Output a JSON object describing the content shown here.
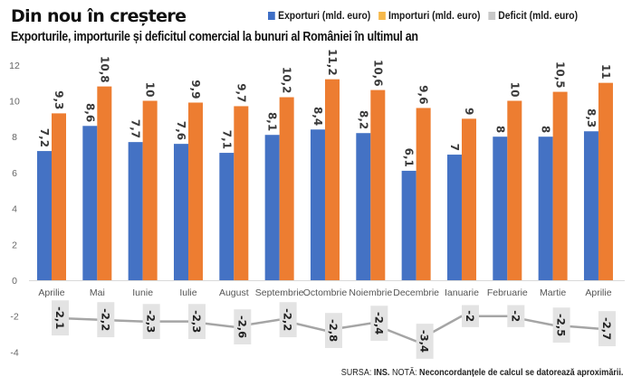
{
  "header": {
    "title": "Din nou în creștere",
    "subtitle": "Exporturile, importurile și deficitul comercial la bunuri al României în ultimul an"
  },
  "legend": [
    {
      "label": "Exporturi (mld. euro)",
      "color": "#3f6fc6"
    },
    {
      "label": "Importuri (mld. euro)",
      "color": "#f6b84a"
    },
    {
      "label": "Deficit (mld. euro)",
      "color": "#c8c8c8"
    }
  ],
  "footer": {
    "source_prefix": "SURSA: ",
    "source": "INS.",
    "note_prefix": " NOTĂ: ",
    "note": "Neconcordanțele de calcul se datorează aproximării."
  },
  "chart_data": {
    "type": "bar",
    "title": "Din nou în creștere",
    "subtitle": "Exporturile, importurile și deficitul comercial la bunuri al României în ultimul an",
    "xlabel": "",
    "ylabel": "",
    "ylim": [
      -4,
      12
    ],
    "yticks": [
      -4,
      -2,
      0,
      2,
      4,
      6,
      8,
      10,
      12
    ],
    "grid": false,
    "legend_position": "top-right",
    "categories": [
      "Aprilie",
      "Mai",
      "Iunie",
      "Iulie",
      "August",
      "Septembrie",
      "Octombrie",
      "Noiembrie",
      "Decembrie",
      "Ianuarie",
      "Februarie",
      "Martie",
      "Aprilie"
    ],
    "series": [
      {
        "name": "Exporturi (mld. euro)",
        "type": "bar",
        "color": "#4472c4",
        "values": [
          7.2,
          8.6,
          7.7,
          7.6,
          7.1,
          8.1,
          8.4,
          8.2,
          6.1,
          7,
          8,
          8,
          8.3
        ],
        "labels": [
          "7,2",
          "8,6",
          "7,7",
          "7,6",
          "7,1",
          "8,1",
          "8,4",
          "8,2",
          "6,1",
          "7",
          "8",
          "8",
          "8,3"
        ]
      },
      {
        "name": "Importuri (mld. euro)",
        "type": "bar",
        "color": "#ed7d31",
        "values": [
          9.3,
          10.8,
          10,
          9.9,
          9.7,
          10.2,
          11.2,
          10.6,
          9.6,
          9,
          10,
          10.5,
          11
        ],
        "labels": [
          "9,3",
          "10,8",
          "10",
          "9,9",
          "9,7",
          "10,2",
          "11,2",
          "10,6",
          "9,6",
          "9",
          "10",
          "10,5",
          "11"
        ]
      },
      {
        "name": "Deficit (mld. euro)",
        "type": "line",
        "color": "#a5a5a5",
        "values": [
          -2.1,
          -2.2,
          -2.3,
          -2.3,
          -2.6,
          -2.2,
          -2.8,
          -2.4,
          -3.4,
          -2,
          -2,
          -2.5,
          -2.7
        ],
        "labels": [
          "-2,1",
          "-2,2",
          "-2,3",
          "-2,3",
          "-2,6",
          "-2,2",
          "-2,8",
          "-2,4",
          "-3,4",
          "-2",
          "-2",
          "-2,5",
          "-2,7"
        ]
      }
    ]
  }
}
